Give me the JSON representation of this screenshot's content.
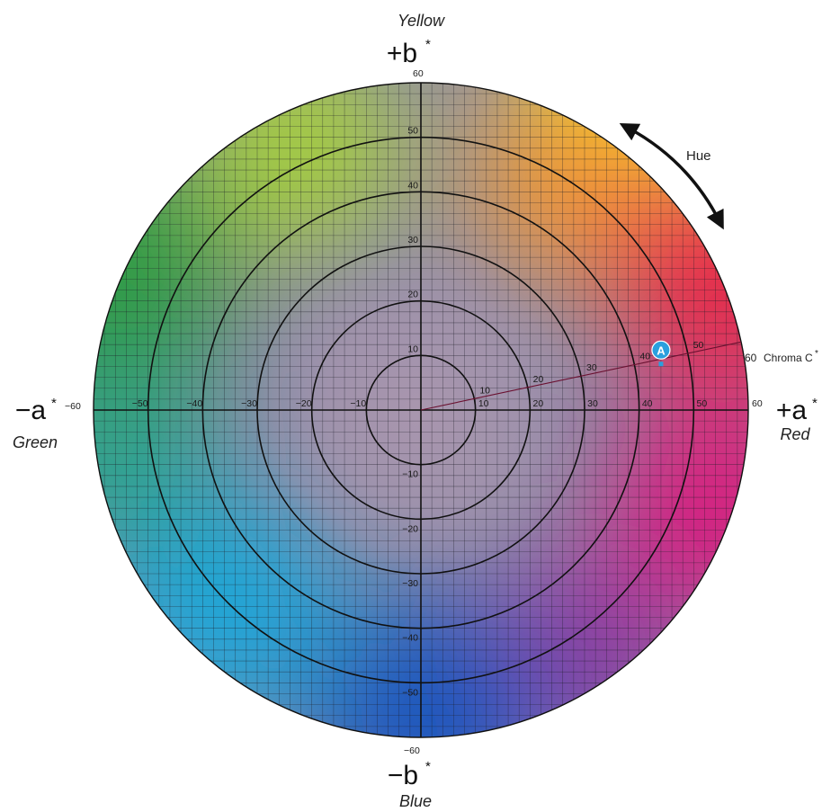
{
  "colors": {
    "center": "#a996ae",
    "yellow": "#f6ec1e",
    "orange": "#f39a30",
    "red": "#e62a4c",
    "magenta": "#d81e7e",
    "purple": "#8a3ba0",
    "blue": "#1b57bd",
    "cyan": "#1aa6d8",
    "teal": "#2aa38a",
    "green": "#2f9b45",
    "lime": "#a6cf3c",
    "marker": "#2aa0de"
  },
  "axes": {
    "pos_b": {
      "label": "+b",
      "star": "*",
      "color_name": "Yellow",
      "end_value": "60"
    },
    "neg_b": {
      "label": "−b",
      "star": "*",
      "color_name": "Blue",
      "end_value": "−60"
    },
    "pos_a": {
      "label": "+a",
      "star": "*",
      "color_name": "Red",
      "end_value": "60"
    },
    "neg_a": {
      "label": "−a",
      "star": "*",
      "color_name": "Green",
      "end_value": "−60"
    }
  },
  "ticks": {
    "a_positive": [
      "10",
      "20",
      "30",
      "40",
      "50"
    ],
    "a_negative": [
      "−10",
      "−20",
      "−30",
      "−40",
      "−50"
    ],
    "b_positive": [
      "10",
      "20",
      "30",
      "40",
      "50"
    ],
    "b_negative": [
      "−10",
      "−20",
      "−30",
      "−40",
      "−50"
    ]
  },
  "chroma_line": {
    "label": "Chroma C",
    "star": "*",
    "end_value": "60",
    "tick_labels": [
      "10",
      "20",
      "30",
      "40",
      "50"
    ],
    "hue_angle_deg": 12
  },
  "hue": {
    "label": "Hue"
  },
  "point_a": {
    "label": "A",
    "a": 44,
    "b": 11
  },
  "rings": [
    10,
    20,
    30,
    40,
    50,
    60
  ],
  "grid_step": 2
}
